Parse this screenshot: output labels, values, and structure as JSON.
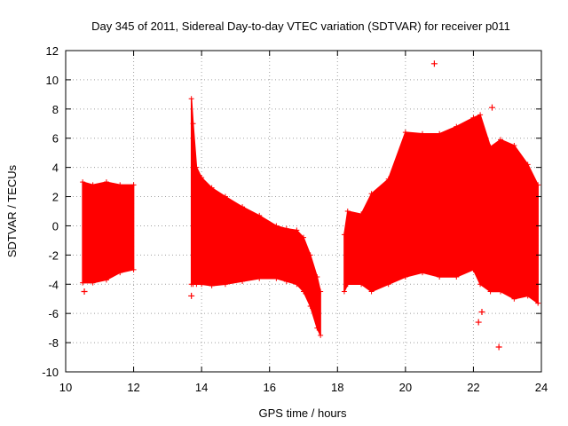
{
  "chart_data": {
    "type": "scatter",
    "title": "Day 345 of 2011, Sidereal Day-to-day VTEC variation (SDTVAR) for receiver p011",
    "xlabel": "GPS time / hours",
    "ylabel": "SDTVAR / TECUs",
    "xlim": [
      10,
      24
    ],
    "ylim": [
      -10,
      12
    ],
    "xticks": [
      "10",
      "12",
      "14",
      "16",
      "18",
      "20",
      "22",
      "24"
    ],
    "yticks": [
      "-10",
      "-8",
      "-6",
      "-4",
      "-2",
      "0",
      "2",
      "4",
      "6",
      "8",
      "10",
      "12"
    ],
    "grid": true,
    "series": [
      {
        "name": "SDTVAR",
        "color": "#ff0000",
        "marker": "plus",
        "bands": [
          {
            "x": [
              10.5,
              10.8,
              11.2,
              11.6,
              12.0
            ],
            "upper": [
              3.0,
              2.8,
              3.0,
              2.8,
              2.8
            ],
            "lower": [
              -3.9,
              -3.9,
              -3.7,
              -3.2,
              -3.0
            ]
          },
          {
            "x": [
              13.7,
              13.75,
              13.85,
              14.0,
              14.3,
              14.7,
              15.2,
              15.7,
              16.2,
              16.5,
              16.8,
              17.0,
              17.2,
              17.4,
              17.5
            ],
            "upper": [
              8.7,
              7.0,
              4.0,
              3.3,
              2.6,
              2.0,
              1.3,
              0.7,
              0.0,
              -0.2,
              -0.3,
              -0.8,
              -2.0,
              -3.5,
              -4.5
            ],
            "lower": [
              -4.0,
              -4.0,
              -4.0,
              -4.0,
              -4.1,
              -4.0,
              -3.8,
              -3.6,
              -3.6,
              -3.8,
              -4.0,
              -4.5,
              -5.5,
              -7.0,
              -7.5
            ]
          },
          {
            "x": [
              18.2,
              18.3,
              18.7,
              19.0,
              19.5,
              20.0,
              20.5,
              21.0,
              21.5,
              22.0,
              22.2,
              22.5,
              22.8,
              23.2,
              23.6,
              23.9
            ],
            "upper": [
              -0.6,
              1.0,
              0.8,
              2.2,
              3.2,
              6.4,
              6.3,
              6.3,
              6.8,
              7.4,
              7.6,
              5.4,
              5.9,
              5.5,
              4.2,
              2.8
            ],
            "lower": [
              -4.5,
              -4.0,
              -4.0,
              -4.5,
              -4.0,
              -3.5,
              -3.2,
              -3.5,
              -3.5,
              -3.0,
              -4.0,
              -4.5,
              -4.5,
              -5.0,
              -4.8,
              -5.3
            ]
          }
        ],
        "outliers": [
          [
            20.85,
            11.1
          ],
          [
            22.55,
            8.1
          ],
          [
            22.15,
            -6.6
          ],
          [
            22.25,
            -5.9
          ],
          [
            22.75,
            -8.3
          ],
          [
            13.7,
            -4.8
          ],
          [
            10.55,
            -4.5
          ]
        ]
      }
    ]
  }
}
